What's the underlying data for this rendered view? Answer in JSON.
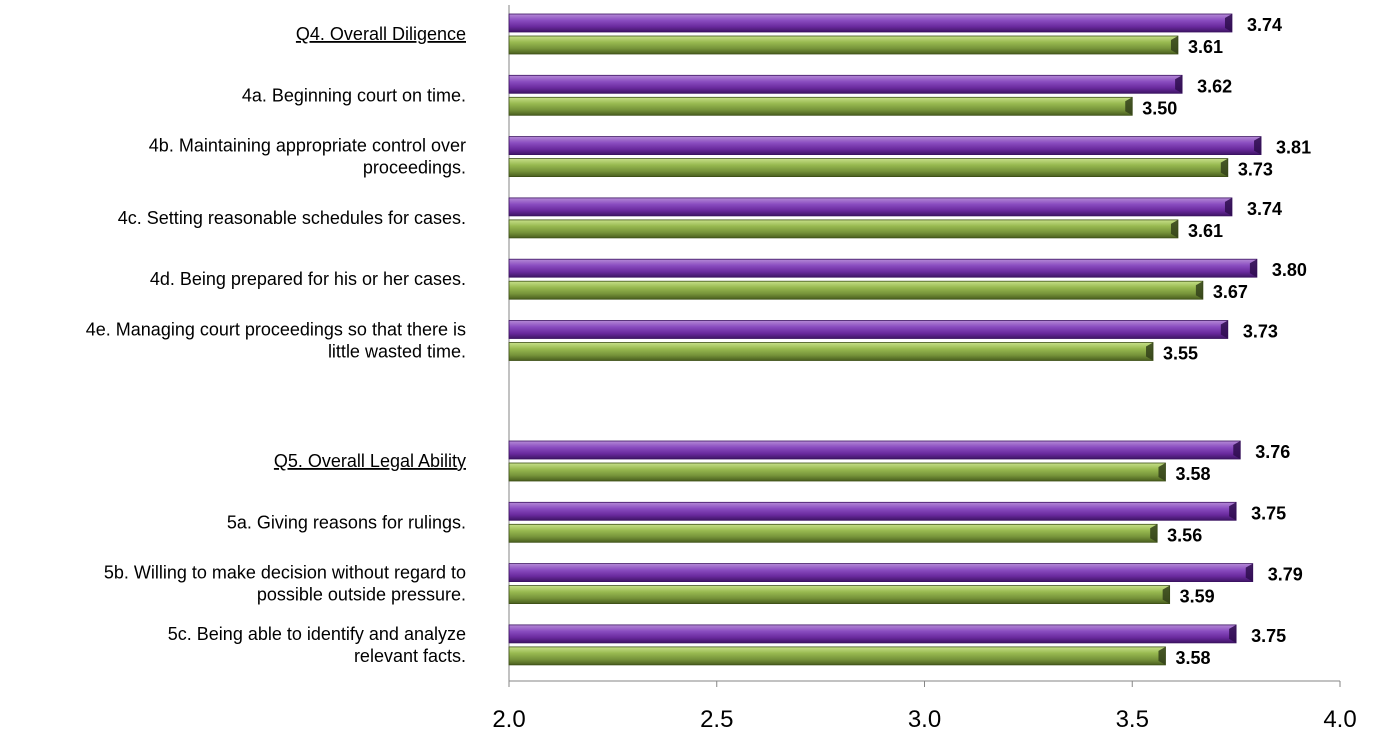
{
  "chart_data": {
    "type": "bar",
    "orientation": "horizontal",
    "title": "",
    "xlabel": "",
    "ylabel": "",
    "xlim": [
      2.0,
      4.0
    ],
    "x_ticks": [
      "2.0",
      "2.5",
      "3.0",
      "3.5",
      "4.0"
    ],
    "grid": false,
    "legend": "none",
    "series_colors": [
      "#7030A0",
      "#77933C"
    ],
    "groups": [
      {
        "heading": "",
        "categories": [
          {
            "label": "Q4. Overall Diligence",
            "header": true,
            "values": [
              3.74,
              3.61
            ],
            "value_labels": [
              "3.74",
              "3.61"
            ]
          },
          {
            "label": "4a. Beginning court on time.",
            "header": false,
            "values": [
              3.62,
              3.5
            ],
            "value_labels": [
              "3.62",
              "3.50"
            ]
          },
          {
            "label": [
              "4b. Maintaining appropriate control over",
              "proceedings."
            ],
            "header": false,
            "values": [
              3.81,
              3.73
            ],
            "value_labels": [
              "3.81",
              "3.73"
            ]
          },
          {
            "label": "4c. Setting reasonable schedules for cases.",
            "header": false,
            "values": [
              3.74,
              3.61
            ],
            "value_labels": [
              "3.74",
              "3.61"
            ]
          },
          {
            "label": "4d. Being prepared for his or her cases.",
            "header": false,
            "values": [
              3.8,
              3.67
            ],
            "value_labels": [
              "3.80",
              "3.67"
            ]
          },
          {
            "label": [
              "4e. Managing court proceedings so that there is",
              "little wasted time."
            ],
            "header": false,
            "values": [
              3.73,
              3.55
            ],
            "value_labels": [
              "3.73",
              "3.55"
            ]
          }
        ]
      },
      {
        "heading": "",
        "categories": [
          {
            "label": "Q5. Overall Legal Ability",
            "header": true,
            "values": [
              3.76,
              3.58
            ],
            "value_labels": [
              "3.76",
              "3.58"
            ]
          },
          {
            "label": "5a. Giving reasons for rulings.",
            "header": false,
            "values": [
              3.75,
              3.56
            ],
            "value_labels": [
              "3.75",
              "3.56"
            ]
          },
          {
            "label": [
              "5b. Willing to make decision without regard to",
              "possible outside pressure."
            ],
            "header": false,
            "values": [
              3.79,
              3.59
            ],
            "value_labels": [
              "3.79",
              "3.59"
            ]
          },
          {
            "label": [
              "5c. Being able to identify and analyze",
              "relevant facts."
            ],
            "header": false,
            "values": [
              3.75,
              3.58
            ],
            "value_labels": [
              "3.75",
              "3.58"
            ]
          }
        ]
      }
    ]
  }
}
